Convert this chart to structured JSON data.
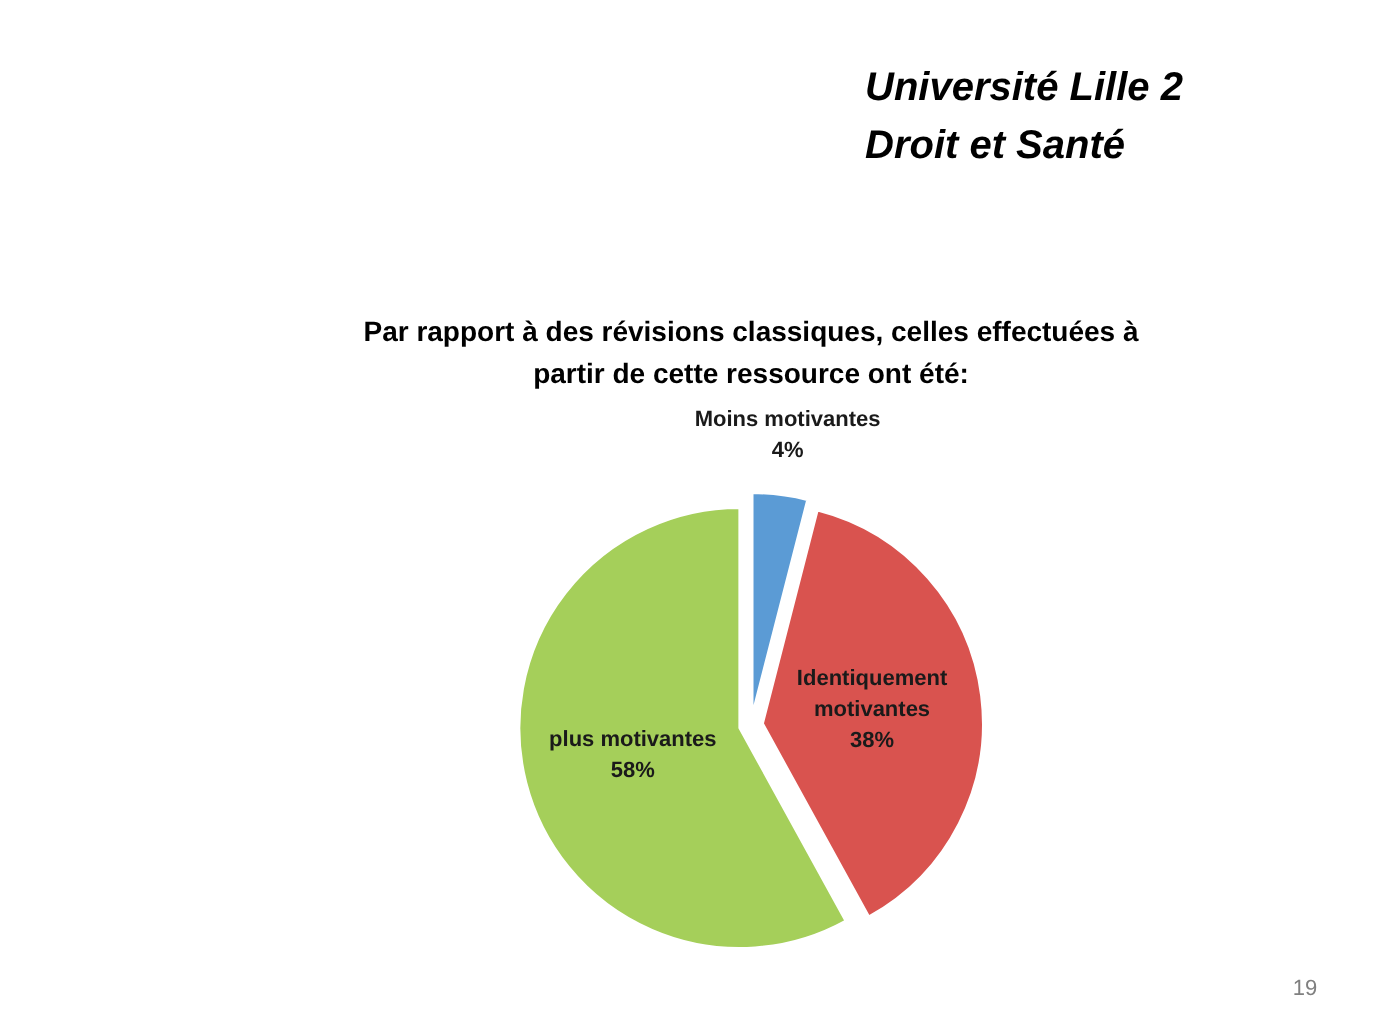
{
  "chart_data": {
    "type": "pie",
    "title": "Par rapport à des révisions classiques, celles effectuées à partir de cette ressource ont été:",
    "categories": [
      "Moins motivantes",
      "Identiquement motivantes",
      "plus motivantes"
    ],
    "values": [
      4,
      38,
      58
    ],
    "value_labels": [
      "4%",
      "38%",
      "58%"
    ],
    "colors": [
      "#5b9bd5",
      "#d9534f",
      "#a5cf5a"
    ],
    "annotations": [
      "Université Lille 2 Droit et Santé",
      "19"
    ]
  }
}
